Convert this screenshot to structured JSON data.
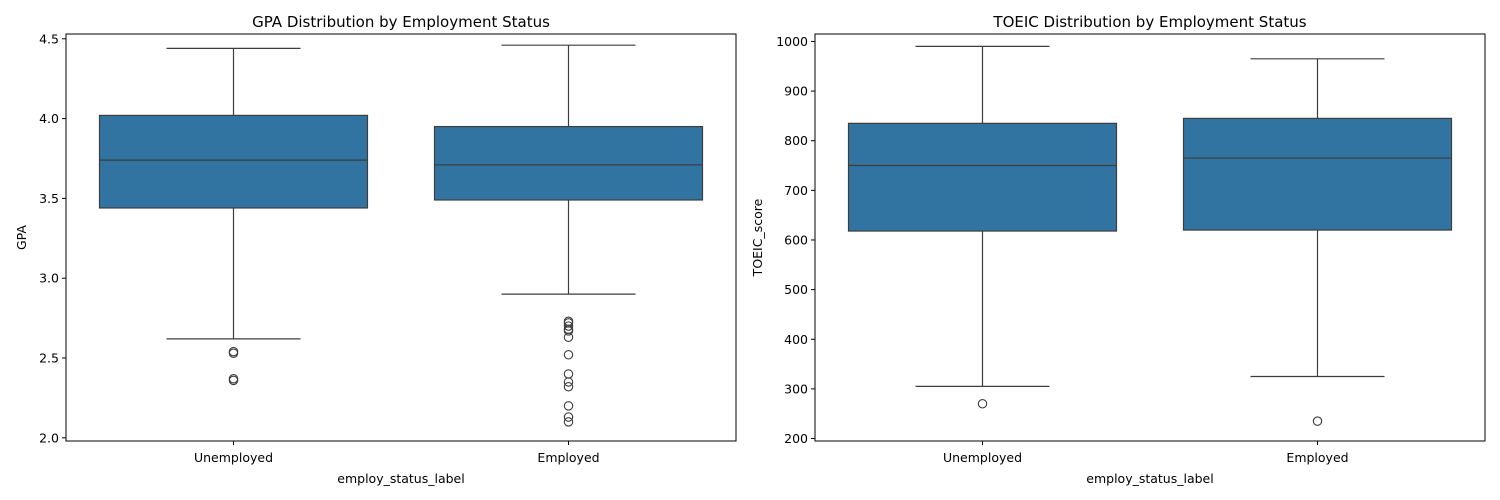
{
  "chart_data": [
    {
      "type": "box",
      "title": "GPA Distribution by Employment Status",
      "xlabel": "employ_status_label",
      "ylabel": "GPA",
      "categories": [
        "Unemployed",
        "Employed"
      ],
      "ylim": [
        1.98,
        4.53
      ],
      "yticks": [
        2.0,
        2.5,
        3.0,
        3.5,
        4.0,
        4.5
      ],
      "ytick_labels": [
        "2.0",
        "2.5",
        "3.0",
        "3.5",
        "4.0",
        "4.5"
      ],
      "color": "#3274a1",
      "grid": false,
      "boxes": [
        {
          "category": "Unemployed",
          "whisker_low": 2.62,
          "q1": 3.44,
          "median": 3.74,
          "q3": 4.02,
          "whisker_high": 4.44,
          "outliers": [
            2.54,
            2.53,
            2.37,
            2.36
          ]
        },
        {
          "category": "Employed",
          "whisker_low": 2.9,
          "q1": 3.49,
          "median": 3.71,
          "q3": 3.95,
          "whisker_high": 4.46,
          "outliers": [
            2.73,
            2.72,
            2.7,
            2.68,
            2.67,
            2.63,
            2.52,
            2.4,
            2.35,
            2.32,
            2.2,
            2.13,
            2.1
          ]
        }
      ]
    },
    {
      "type": "box",
      "title": "TOEIC Distribution by Employment Status",
      "xlabel": "employ_status_label",
      "ylabel": "TOEIC_score",
      "categories": [
        "Unemployed",
        "Employed"
      ],
      "ylim": [
        195,
        1015
      ],
      "yticks": [
        200,
        300,
        400,
        500,
        600,
        700,
        800,
        900,
        1000
      ],
      "ytick_labels": [
        "200",
        "300",
        "400",
        "500",
        "600",
        "700",
        "800",
        "900",
        "1000"
      ],
      "color": "#3274a1",
      "grid": false,
      "boxes": [
        {
          "category": "Unemployed",
          "whisker_low": 305,
          "q1": 618,
          "median": 750,
          "q3": 835,
          "whisker_high": 990,
          "outliers": [
            270
          ]
        },
        {
          "category": "Employed",
          "whisker_low": 325,
          "q1": 620,
          "median": 765,
          "q3": 845,
          "whisker_high": 965,
          "outliers": [
            235
          ]
        }
      ]
    }
  ]
}
